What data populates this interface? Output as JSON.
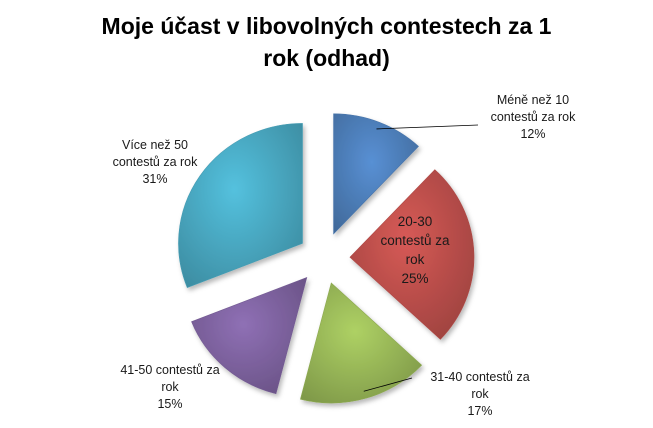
{
  "chart_data": {
    "type": "pie",
    "title": "Moje účast v libovolných contestech za 1\nrok (odhad)",
    "slices": [
      {
        "name": "Méně než 10 contestů za rok",
        "label_lines": [
          "Méně než 10",
          "contestů za rok"
        ],
        "percent_label": "12%",
        "value": 12,
        "color": "#4f81bd"
      },
      {
        "name": "20-30 contestů za rok",
        "label_lines": [
          "20-30",
          "contestů za",
          "rok"
        ],
        "percent_label": "25%",
        "value": 25,
        "color": "#c0504d"
      },
      {
        "name": "31-40 contestů za rok",
        "label_lines": [
          "31-40 contestů za",
          "rok"
        ],
        "percent_label": "17%",
        "value": 17,
        "color": "#9bbb59"
      },
      {
        "name": "41-50 contestů za rok",
        "label_lines": [
          "41-50 contestů za",
          "rok"
        ],
        "percent_label": "15%",
        "value": 15,
        "color": "#8064a2"
      },
      {
        "name": "Více než 50 contestů za rok",
        "label_lines": [
          "Více než 50",
          "contestů za rok"
        ],
        "percent_label": "31%",
        "value": 31,
        "color": "#4bacc6"
      }
    ]
  }
}
